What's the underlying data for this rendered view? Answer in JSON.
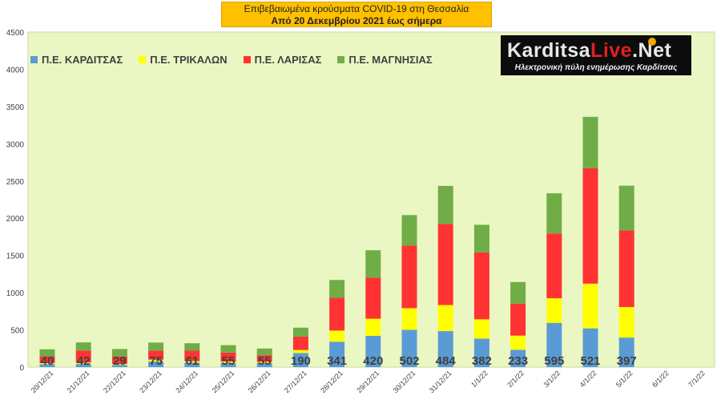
{
  "title": {
    "line1": "Επιβεβαιωμένα κρούσματα COVID-19 στη Θεσσαλία",
    "line2": "Από 20 Δεκεμβρίου 2021 έως σήμερα"
  },
  "logo": {
    "text_left": "Karditsa",
    "text_red": "Live",
    "text_right": ".Net",
    "subtitle": "Ηλεκτρονική πύλη ενημέρωσης Καρδίτσας"
  },
  "colors": {
    "plot_background": "#ebf7c3",
    "karditsa": "#5b9bd5",
    "trikala": "#ffff00",
    "larisa": "#ff3333",
    "magnisia": "#70ad47"
  },
  "chart_data": {
    "type": "bar",
    "stacked": true,
    "categories": [
      "20/12/21",
      "21/12/21",
      "22/12/21",
      "23/12/21",
      "24/12/21",
      "25/12/21",
      "26/12/21",
      "27/12/21",
      "28/12/21",
      "29/12/21",
      "30/12/21",
      "31/12/21",
      "1/1/22",
      "2/1/22",
      "3/1/22",
      "4/1/22",
      "5/1/22",
      "6/1/22",
      "7/1/22"
    ],
    "series": [
      {
        "name": "Π.Ε. ΚΑΡΔΙΤΣΑΣ",
        "values": [
          40,
          42,
          29,
          75,
          61,
          55,
          55,
          190,
          341,
          420,
          502,
          484,
          382,
          233,
          595,
          521,
          397,
          null,
          null
        ]
      },
      {
        "name": "Π.Ε. ΤΡΙΚΑΛΩΝ",
        "values": [
          15,
          20,
          15,
          25,
          20,
          20,
          15,
          40,
          150,
          230,
          290,
          350,
          260,
          190,
          330,
          600,
          410,
          null,
          null
        ]
      },
      {
        "name": "Π.Ε. ΛΑΡΙΣΑΣ",
        "values": [
          90,
          160,
          100,
          120,
          140,
          120,
          90,
          180,
          440,
          550,
          840,
          1090,
          900,
          430,
          870,
          1550,
          1030,
          null,
          null
        ]
      },
      {
        "name": "Π.Ε. ΜΑΓΝΗΣΙΑΣ",
        "values": [
          95,
          110,
          100,
          110,
          100,
          100,
          90,
          120,
          240,
          370,
          410,
          510,
          370,
          290,
          540,
          690,
          600,
          null,
          null
        ]
      }
    ],
    "data_labels": [
      "40",
      "42",
      "29",
      "75",
      "61",
      "55",
      "55",
      "190",
      "341",
      "420",
      "502",
      "484",
      "382",
      "233",
      "595",
      "521",
      "397",
      "",
      ""
    ],
    "yticks": [
      "0",
      "500",
      "1000",
      "1500",
      "2000",
      "2500",
      "3000",
      "3500",
      "4000",
      "4500"
    ],
    "ylim": [
      0,
      4500
    ],
    "grid": false,
    "legend": "top-left"
  }
}
